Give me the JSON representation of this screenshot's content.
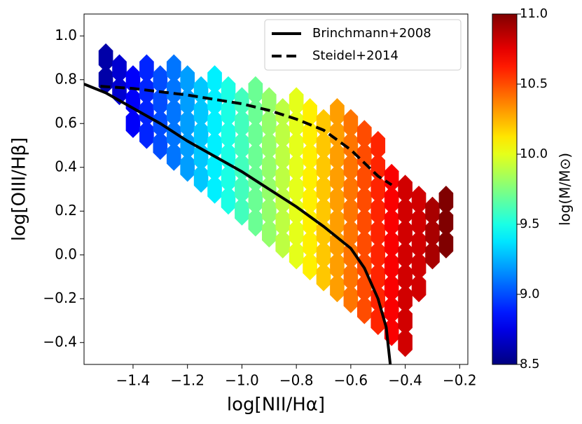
{
  "chart_data": {
    "type": "hexbin",
    "xlabel": "log[NII/Hα]",
    "ylabel": "log[OIII/Hβ]",
    "colorbar_label": "log(M/M⊙)",
    "xlim": [
      -1.58,
      -0.17
    ],
    "ylim": [
      -0.5,
      1.1
    ],
    "clim": [
      8.5,
      11.0
    ],
    "xticks": [
      {
        "value": -1.4,
        "label": "−1.4"
      },
      {
        "value": -1.2,
        "label": "−1.2"
      },
      {
        "value": -1.0,
        "label": "−1.0"
      },
      {
        "value": -0.8,
        "label": "−0.8"
      },
      {
        "value": -0.6,
        "label": "−0.6"
      },
      {
        "value": -0.4,
        "label": "−0.4"
      },
      {
        "value": -0.2,
        "label": "−0.2"
      }
    ],
    "yticks": [
      {
        "value": -0.4,
        "label": "−0.4"
      },
      {
        "value": -0.2,
        "label": "−0.2"
      },
      {
        "value": 0.0,
        "label": "0.0"
      },
      0.2,
      0.4,
      0.6,
      0.8,
      {
        "value": 1.0,
        "label": "1.0"
      }
    ],
    "cticks": [
      8.5,
      {
        "value": 9.0,
        "label": "9.0"
      },
      9.5,
      {
        "value": 10.0,
        "label": "10.0"
      },
      10.5,
      {
        "value": 11.0,
        "label": "11.0"
      }
    ],
    "hexbin": [
      {
        "x": -1.5,
        "c": 8.6,
        "y": [
          0.8,
          0.9
        ]
      },
      {
        "x": -1.45,
        "c": 8.7,
        "y": [
          0.75,
          0.85
        ]
      },
      {
        "x": -1.4,
        "c": 8.8,
        "y": [
          0.6,
          0.7,
          0.8
        ]
      },
      {
        "x": -1.35,
        "c": 8.9,
        "y": [
          0.55,
          0.65,
          0.75,
          0.85
        ]
      },
      {
        "x": -1.3,
        "c": 9.0,
        "y": [
          0.5,
          0.6,
          0.7,
          0.8
        ]
      },
      {
        "x": -1.25,
        "c": 9.1,
        "y": [
          0.45,
          0.55,
          0.65,
          0.75,
          0.85
        ]
      },
      {
        "x": -1.2,
        "c": 9.2,
        "y": [
          0.4,
          0.5,
          0.6,
          0.7,
          0.8
        ]
      },
      {
        "x": -1.15,
        "c": 9.3,
        "y": [
          0.35,
          0.45,
          0.55,
          0.65,
          0.75
        ]
      },
      {
        "x": -1.1,
        "c": 9.4,
        "y": [
          0.3,
          0.4,
          0.5,
          0.6,
          0.7,
          0.8
        ]
      },
      {
        "x": -1.05,
        "c": 9.5,
        "y": [
          0.25,
          0.35,
          0.45,
          0.55,
          0.65,
          0.75
        ]
      },
      {
        "x": -1.0,
        "c": 9.6,
        "y": [
          0.2,
          0.3,
          0.4,
          0.5,
          0.6,
          0.7
        ]
      },
      {
        "x": -0.95,
        "c": 9.7,
        "y": [
          0.15,
          0.25,
          0.35,
          0.45,
          0.55,
          0.65,
          0.75
        ]
      },
      {
        "x": -0.9,
        "c": 9.8,
        "y": [
          0.1,
          0.2,
          0.3,
          0.4,
          0.5,
          0.6,
          0.7
        ]
      },
      {
        "x": -0.85,
        "c": 9.9,
        "y": [
          0.05,
          0.15,
          0.25,
          0.35,
          0.45,
          0.55,
          0.65
        ]
      },
      {
        "x": -0.8,
        "c": 10.0,
        "y": [
          0.0,
          0.1,
          0.2,
          0.3,
          0.4,
          0.5,
          0.6,
          0.7
        ]
      },
      {
        "x": -0.75,
        "c": 10.1,
        "y": [
          -0.05,
          0.05,
          0.15,
          0.25,
          0.35,
          0.45,
          0.55,
          0.65
        ]
      },
      {
        "x": -0.7,
        "c": 10.2,
        "y": [
          -0.1,
          0.0,
          0.1,
          0.2,
          0.3,
          0.4,
          0.5,
          0.6
        ]
      },
      {
        "x": -0.65,
        "c": 10.3,
        "y": [
          -0.15,
          -0.05,
          0.05,
          0.15,
          0.25,
          0.35,
          0.45,
          0.55,
          0.65
        ]
      },
      {
        "x": -0.6,
        "c": 10.4,
        "y": [
          -0.2,
          -0.1,
          0.0,
          0.1,
          0.2,
          0.3,
          0.4,
          0.5,
          0.6
        ]
      },
      {
        "x": -0.55,
        "c": 10.5,
        "y": [
          -0.25,
          -0.15,
          -0.05,
          0.05,
          0.15,
          0.25,
          0.35,
          0.45,
          0.55
        ]
      },
      {
        "x": -0.5,
        "c": 10.6,
        "y": [
          -0.3,
          -0.2,
          -0.1,
          0.0,
          0.1,
          0.2,
          0.3,
          0.4,
          0.5
        ]
      },
      {
        "x": -0.45,
        "c": 10.7,
        "y": [
          -0.35,
          -0.25,
          -0.15,
          -0.05,
          0.05,
          0.15,
          0.25,
          0.35
        ]
      },
      {
        "x": -0.4,
        "c": 10.8,
        "y": [
          -0.4,
          -0.3,
          -0.2,
          -0.1,
          0.0,
          0.1,
          0.2,
          0.3
        ]
      },
      {
        "x": -0.35,
        "c": 10.8,
        "y": [
          -0.15,
          -0.05,
          0.05,
          0.15,
          0.25
        ]
      },
      {
        "x": -0.3,
        "c": 10.9,
        "y": [
          0.0,
          0.1,
          0.2
        ]
      },
      {
        "x": -0.25,
        "c": 11.0,
        "y": [
          0.05,
          0.15,
          0.25
        ]
      }
    ],
    "series": [
      {
        "name": "Brinchmann+2008",
        "color": "#000000",
        "style": "solid",
        "x": [
          -1.58,
          -1.5,
          -1.4,
          -1.3,
          -1.2,
          -1.1,
          -1.0,
          -0.9,
          -0.8,
          -0.7,
          -0.6,
          -0.55,
          -0.5,
          -0.47,
          -0.455
        ],
        "values": [
          0.78,
          0.74,
          0.67,
          0.6,
          0.52,
          0.45,
          0.38,
          0.3,
          0.22,
          0.13,
          0.03,
          -0.06,
          -0.2,
          -0.33,
          -0.5
        ]
      },
      {
        "name": "Steidel+2014",
        "color": "#000000",
        "style": "dashed",
        "x": [
          -1.52,
          -1.4,
          -1.2,
          -1.0,
          -0.9,
          -0.8,
          -0.7,
          -0.6,
          -0.5,
          -0.45
        ],
        "values": [
          0.77,
          0.76,
          0.73,
          0.69,
          0.66,
          0.62,
          0.57,
          0.48,
          0.36,
          0.32
        ]
      }
    ]
  }
}
